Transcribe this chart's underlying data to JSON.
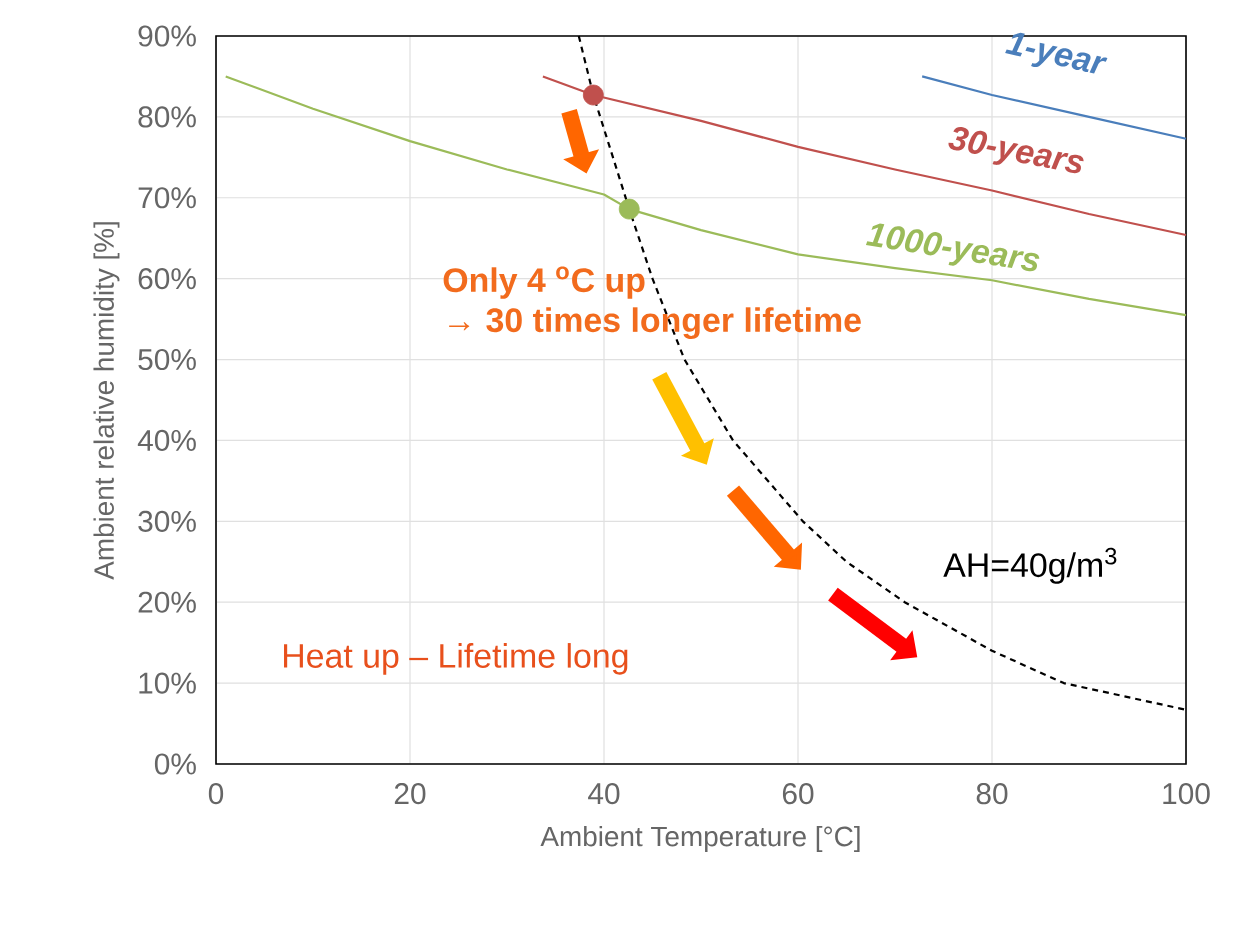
{
  "chart_data": {
    "type": "line",
    "xlabel": "Ambient Temperature [°C]",
    "ylabel": "Ambient relative humidity [%]",
    "xlim": [
      0,
      100
    ],
    "xticks": [
      0,
      20,
      40,
      60,
      80,
      100
    ],
    "ylim": [
      0,
      90
    ],
    "yticks": [
      {
        "value": 0,
        "label": "0%"
      },
      {
        "value": 10,
        "label": "10%"
      },
      {
        "value": 20,
        "label": "20%"
      },
      {
        "value": 30,
        "label": "30%"
      },
      {
        "value": 40,
        "label": "40%"
      },
      {
        "value": 50,
        "label": "50%"
      },
      {
        "value": 60,
        "label": "60%"
      },
      {
        "value": 70,
        "label": "70%"
      },
      {
        "value": 80,
        "label": "80%"
      },
      {
        "value": 90,
        "label": "90%"
      }
    ],
    "grid": true,
    "marker": "none",
    "series": [
      {
        "name": "1-year",
        "color": "#4a7ebb",
        "x": [
          72.8,
          80,
          90,
          100
        ],
        "values": [
          85,
          82.7,
          80,
          77.3
        ]
      },
      {
        "name": "30-years",
        "color": "#c0504d",
        "x": [
          33.7,
          38.9,
          50,
          60,
          70,
          80,
          90,
          100
        ],
        "values": [
          85,
          82.7,
          79.5,
          76.3,
          73.5,
          70.9,
          68,
          65.4
        ]
      },
      {
        "name": "1000-years",
        "color": "#9bbb59",
        "x": [
          1,
          10,
          20,
          30,
          40,
          42.6,
          50,
          60,
          70,
          80,
          90,
          100
        ],
        "values": [
          85,
          81,
          77,
          73.5,
          70.4,
          68.6,
          66,
          63,
          61.3,
          59.8,
          57.5,
          55.5
        ]
      },
      {
        "name": "AH=40g/m$^{3}$",
        "color": "#000000",
        "line_style": "dashed",
        "x": [
          37.4,
          38.9,
          42.6,
          45,
          48.3,
          53.3,
          60.5,
          65,
          71,
          80,
          87.4,
          100
        ],
        "values": [
          90,
          82.7,
          68.6,
          60,
          50,
          40,
          30,
          25,
          20,
          14,
          10,
          6.7
        ]
      },
      {
        "type": "scatter",
        "marker": "circle",
        "color": "#c0504d",
        "x": [
          38.9
        ],
        "values": [
          82.7
        ]
      },
      {
        "type": "scatter",
        "marker": "circle",
        "color": "#9bbb59",
        "x": [
          42.6
        ],
        "values": [
          68.6
        ]
      }
    ],
    "annotations": [
      "Only 4 $^{o}$C  up",
      "→ 30 times longer lifetime",
      "Heat up – Lifetime long"
    ]
  }
}
